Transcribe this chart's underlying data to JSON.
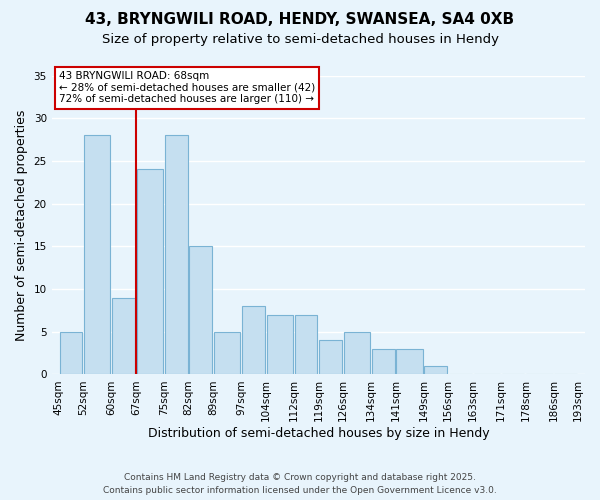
{
  "title": "43, BRYNGWILI ROAD, HENDY, SWANSEA, SA4 0XB",
  "subtitle": "Size of property relative to semi-detached houses in Hendy",
  "xlabel": "Distribution of semi-detached houses by size in Hendy",
  "ylabel": "Number of semi-detached properties",
  "background_color": "#e8f4fc",
  "bar_color": "#c5dff0",
  "bar_edge_color": "#7ab3d4",
  "grid_color": "#ffffff",
  "bins": [
    45,
    52,
    60,
    67,
    75,
    82,
    89,
    97,
    104,
    112,
    119,
    126,
    134,
    141,
    149,
    156,
    163,
    171,
    178,
    186,
    193
  ],
  "bin_labels": [
    "45sqm",
    "52sqm",
    "60sqm",
    "67sqm",
    "75sqm",
    "82sqm",
    "89sqm",
    "97sqm",
    "104sqm",
    "112sqm",
    "119sqm",
    "126sqm",
    "134sqm",
    "141sqm",
    "149sqm",
    "156sqm",
    "163sqm",
    "171sqm",
    "178sqm",
    "186sqm",
    "193sqm"
  ],
  "values": [
    5,
    28,
    9,
    24,
    28,
    15,
    5,
    8,
    7,
    7,
    4,
    5,
    3,
    3,
    1,
    0,
    0,
    0,
    0,
    0
  ],
  "ylim": [
    0,
    35
  ],
  "yticks": [
    0,
    5,
    10,
    15,
    20,
    25,
    30,
    35
  ],
  "property_line_x": 67,
  "annotation_title": "43 BRYNGWILI ROAD: 68sqm",
  "annotation_line1": "← 28% of semi-detached houses are smaller (42)",
  "annotation_line2": "72% of semi-detached houses are larger (110) →",
  "annotation_box_color": "#ffffff",
  "annotation_box_edge_color": "#cc0000",
  "property_line_color": "#cc0000",
  "footer1": "Contains HM Land Registry data © Crown copyright and database right 2025.",
  "footer2": "Contains public sector information licensed under the Open Government Licence v3.0.",
  "title_fontsize": 11,
  "subtitle_fontsize": 9.5,
  "label_fontsize": 9,
  "tick_fontsize": 7.5,
  "annotation_fontsize": 7.5,
  "footer_fontsize": 6.5
}
